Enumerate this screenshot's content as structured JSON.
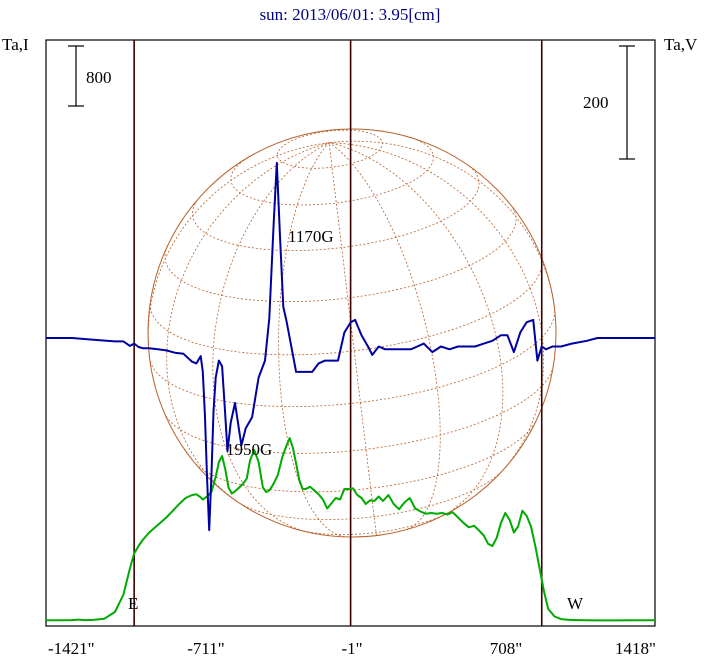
{
  "title": "sun: 2013/06/01: 3.95[cm]",
  "left_axis_label": "Ta,I",
  "right_axis_label": "Ta,V",
  "scale_left": "800",
  "scale_right": "200",
  "annotations": {
    "field_a": "1170G",
    "field_b": "1950G",
    "east": "E",
    "west": "W"
  },
  "colors": {
    "intensity": "#00aa00",
    "polarization": "#0000a0",
    "disk": "#b8602a",
    "vlines": "#3a0000",
    "frame": "#000000"
  },
  "chart_data": {
    "type": "line",
    "title": "sun: 2013/06/01: 3.95[cm]",
    "xlabel": "",
    "ylabel_left": "Ta,I",
    "ylabel_right": "Ta,V",
    "xlim": [
      -1421,
      1418
    ],
    "xticks": [
      "-1421\"",
      "-711\"",
      "-1\"",
      "708\"",
      "1418\""
    ],
    "vertical_lines": [
      -1010,
      -1,
      890
    ],
    "series": [
      {
        "name": "Ta,I",
        "color": "#00aa00",
        "x": [
          -1421,
          -1350,
          -1300,
          -1270,
          -1240,
          -1200,
          -1150,
          -1100,
          -1060,
          -1030,
          -1010,
          -990,
          -970,
          -940,
          -900,
          -860,
          -830,
          -800,
          -770,
          -740,
          -720,
          -700,
          -690,
          -670,
          -650,
          -630,
          -615,
          -600,
          -585,
          -570,
          -555,
          -540,
          -520,
          -500,
          -485,
          -470,
          -450,
          -430,
          -410,
          -395,
          -380,
          -360,
          -340,
          -320,
          -300,
          -285,
          -270,
          -255,
          -240,
          -225,
          -210,
          -190,
          -170,
          -150,
          -130,
          -110,
          -90,
          -70,
          -50,
          -30,
          -10,
          10,
          30,
          50,
          70,
          90,
          110,
          130,
          150,
          175,
          200,
          225,
          250,
          275,
          300,
          325,
          350,
          375,
          400,
          425,
          450,
          475,
          500,
          525,
          550,
          575,
          600,
          620,
          640,
          660,
          680,
          700,
          720,
          740,
          760,
          780,
          800,
          820,
          840,
          860,
          880,
          900,
          920,
          950,
          980,
          1020,
          1060,
          1100,
          1150,
          1200,
          1250,
          1300,
          1350,
          1418
        ],
        "y": [
          10,
          10,
          12,
          18,
          12,
          15,
          30,
          120,
          350,
          700,
          900,
          1000,
          1080,
          1180,
          1280,
          1380,
          1470,
          1560,
          1640,
          1680,
          1690,
          1650,
          1620,
          1660,
          1720,
          1920,
          2120,
          2200,
          2020,
          1780,
          1700,
          1730,
          1780,
          1840,
          1900,
          2140,
          2280,
          2120,
          1780,
          1720,
          1740,
          1830,
          1950,
          2180,
          2340,
          2440,
          2310,
          2100,
          1880,
          1760,
          1760,
          1790,
          1740,
          1690,
          1620,
          1500,
          1570,
          1640,
          1620,
          1760,
          1760,
          1770,
          1680,
          1640,
          1560,
          1610,
          1600,
          1660,
          1600,
          1680,
          1560,
          1490,
          1580,
          1640,
          1500,
          1460,
          1430,
          1440,
          1430,
          1440,
          1420,
          1450,
          1380,
          1310,
          1250,
          1270,
          1200,
          1140,
          1030,
          1000,
          1110,
          1310,
          1440,
          1350,
          1180,
          1260,
          1470,
          1400,
          1260,
          1000,
          700,
          400,
          160,
          60,
          25,
          15,
          12,
          10,
          8,
          8,
          8,
          10,
          10,
          10
        ]
      },
      {
        "name": "Ta,V",
        "color": "#0000a0",
        "x": [
          -1421,
          -1300,
          -1200,
          -1100,
          -1060,
          -1030,
          -1010,
          -990,
          -970,
          -940,
          -900,
          -860,
          -820,
          -780,
          -760,
          -740,
          -720,
          -700,
          -690,
          -680,
          -670,
          -660,
          -650,
          -640,
          -630,
          -615,
          -600,
          -590,
          -575,
          -560,
          -540,
          -510,
          -490,
          -460,
          -430,
          -400,
          -380,
          -360,
          -345,
          -330,
          -315,
          -300,
          -285,
          -270,
          -255,
          -240,
          -220,
          -200,
          -180,
          -150,
          -120,
          -90,
          -60,
          -30,
          0,
          20,
          50,
          80,
          100,
          130,
          160,
          190,
          220,
          250,
          280,
          310,
          340,
          380,
          420,
          460,
          500,
          540,
          580,
          620,
          660,
          700,
          730,
          760,
          790,
          820,
          850,
          870,
          890,
          910,
          940,
          980,
          1030,
          1100,
          1150,
          1200,
          1250,
          1300,
          1350,
          1418
        ],
        "y": [
          0,
          0,
          -3,
          -6,
          -6,
          -14,
          -10,
          -16,
          -18,
          -18,
          -20,
          -22,
          -26,
          -28,
          -35,
          -42,
          -45,
          -32,
          -60,
          -140,
          -250,
          -340,
          -245,
          -130,
          -70,
          -40,
          -50,
          -110,
          -200,
          -150,
          -115,
          -190,
          -160,
          -140,
          -70,
          -40,
          35,
          200,
          310,
          180,
          55,
          30,
          0,
          -30,
          -60,
          -60,
          -60,
          -60,
          -60,
          -45,
          -40,
          -40,
          -40,
          10,
          28,
          32,
          5,
          -15,
          -30,
          -15,
          -20,
          -20,
          -20,
          -20,
          -20,
          -15,
          -10,
          -25,
          -15,
          -20,
          -15,
          -15,
          -15,
          -10,
          -5,
          5,
          5,
          -25,
          10,
          28,
          32,
          -40,
          -15,
          -20,
          -15,
          -15,
          -10,
          -5,
          0,
          0,
          0,
          0,
          0,
          0
        ]
      }
    ]
  }
}
